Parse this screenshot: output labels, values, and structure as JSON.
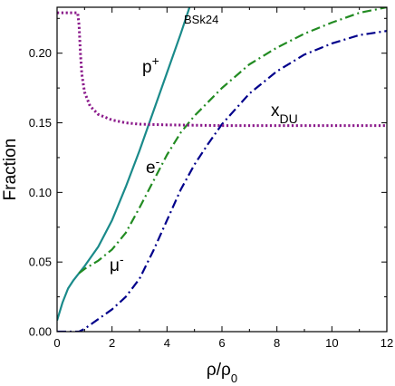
{
  "chart_data": {
    "type": "line",
    "xlabel": "ρ/ρ",
    "xlabel_sub": "0",
    "ylabel": "Fraction",
    "xlim": [
      0,
      12
    ],
    "ylim": [
      0,
      0.233
    ],
    "x_ticks": [
      0,
      2,
      4,
      6,
      8,
      10,
      12
    ],
    "x_tick_labels": [
      "0",
      "2",
      "4",
      "6",
      "8",
      "10",
      "12"
    ],
    "y_ticks": [
      0,
      0.05,
      0.1,
      0.15,
      0.2
    ],
    "y_tick_labels": [
      "0.00",
      "0.05",
      "0.10",
      "0.15",
      "0.20"
    ],
    "grid": false,
    "annotations": [
      {
        "key": "model",
        "text": "BSk24",
        "sub": ""
      },
      {
        "key": "proton",
        "text": "p",
        "sup": "+"
      },
      {
        "key": "electron",
        "text": "e",
        "sup": "-"
      },
      {
        "key": "muon",
        "text": "μ",
        "sup": "-"
      },
      {
        "key": "xdu",
        "text": "x",
        "sub": "DU"
      }
    ],
    "series": [
      {
        "key": "proton",
        "style": "solid",
        "color": "#1a8a8a",
        "points": [
          [
            0.0,
            0.008
          ],
          [
            0.2,
            0.021
          ],
          [
            0.4,
            0.031
          ],
          [
            0.6,
            0.037
          ],
          [
            0.8,
            0.042
          ],
          [
            1.0,
            0.047
          ],
          [
            1.5,
            0.061
          ],
          [
            2.0,
            0.08
          ],
          [
            2.5,
            0.104
          ],
          [
            3.0,
            0.13
          ],
          [
            3.5,
            0.158
          ],
          [
            4.0,
            0.186
          ],
          [
            4.5,
            0.214
          ],
          [
            4.82,
            0.233
          ]
        ]
      },
      {
        "key": "electron",
        "style": "dashdot",
        "color": "#228b22",
        "points": [
          [
            0.8,
            0.042
          ],
          [
            1.0,
            0.045
          ],
          [
            1.5,
            0.051
          ],
          [
            2.0,
            0.059
          ],
          [
            2.5,
            0.071
          ],
          [
            3.0,
            0.089
          ],
          [
            3.5,
            0.108
          ],
          [
            4.0,
            0.127
          ],
          [
            4.5,
            0.143
          ],
          [
            5.0,
            0.155
          ],
          [
            6.0,
            0.175
          ],
          [
            7.0,
            0.192
          ],
          [
            8.0,
            0.204
          ],
          [
            9.0,
            0.214
          ],
          [
            10.0,
            0.222
          ],
          [
            11.0,
            0.229
          ],
          [
            12.0,
            0.233
          ]
        ]
      },
      {
        "key": "muon",
        "style": "dashdot",
        "color": "#00008b",
        "points": [
          [
            0.0,
            0.0
          ],
          [
            0.8,
            0.0
          ],
          [
            1.0,
            0.002
          ],
          [
            1.5,
            0.009
          ],
          [
            2.0,
            0.016
          ],
          [
            2.5,
            0.025
          ],
          [
            3.0,
            0.038
          ],
          [
            3.5,
            0.058
          ],
          [
            4.0,
            0.08
          ],
          [
            4.5,
            0.102
          ],
          [
            5.0,
            0.12
          ],
          [
            5.5,
            0.135
          ],
          [
            6.0,
            0.149
          ],
          [
            7.0,
            0.171
          ],
          [
            8.0,
            0.187
          ],
          [
            9.0,
            0.199
          ],
          [
            10.0,
            0.207
          ],
          [
            11.0,
            0.213
          ],
          [
            12.0,
            0.216
          ]
        ]
      },
      {
        "key": "xdu",
        "style": "dotted",
        "color": "#8b1a8b",
        "points": [
          [
            0.0,
            0.229
          ],
          [
            0.75,
            0.229
          ],
          [
            0.8,
            0.22
          ],
          [
            0.85,
            0.2
          ],
          [
            0.9,
            0.185
          ],
          [
            1.0,
            0.172
          ],
          [
            1.2,
            0.162
          ],
          [
            1.5,
            0.156
          ],
          [
            2.0,
            0.152
          ],
          [
            2.5,
            0.15
          ],
          [
            3.0,
            0.149
          ],
          [
            4.0,
            0.1485
          ],
          [
            6.0,
            0.148
          ],
          [
            12.0,
            0.148
          ]
        ]
      }
    ]
  }
}
